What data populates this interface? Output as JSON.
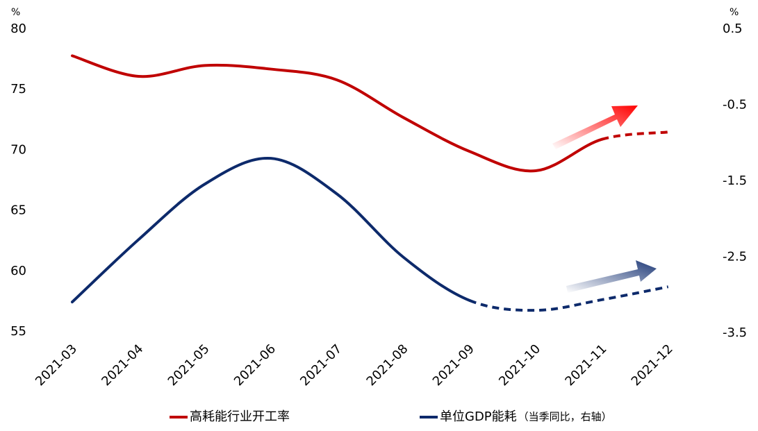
{
  "chart_data": {
    "type": "line",
    "y_unit": "%",
    "y2_unit": "%",
    "categories": [
      "2021-03",
      "2021-04",
      "2021-05",
      "2021-06",
      "2021-07",
      "2021-08",
      "2021-09",
      "2021-10",
      "2021-11",
      "2021-12"
    ],
    "series": [
      {
        "name": "高耗能行业开工率",
        "color": "#c00000",
        "dash_from": 8,
        "values": [
          77.8,
          76.1,
          77.0,
          76.7,
          75.8,
          72.7,
          69.9,
          68.3,
          70.9,
          71.5
        ]
      },
      {
        "name": "单位GDP能耗",
        "legend_note": "（当季同比，右轴）",
        "color": "#0d2a6b",
        "axis": "y2",
        "dash_from": 6,
        "values": [
          -3.09,
          -2.27,
          -1.54,
          -1.2,
          -1.67,
          -2.5,
          -3.07,
          -3.2,
          -3.06,
          -2.89
        ]
      }
    ],
    "ylim": [
      55,
      80
    ],
    "yticks": [
      55,
      60,
      65,
      70,
      75,
      80
    ],
    "y2lim": [
      -3.5,
      0.5
    ],
    "y2ticks": [
      -3.5,
      -2.5,
      -1.5,
      -0.5,
      0.5
    ],
    "grid": false,
    "legend": "bottom"
  }
}
